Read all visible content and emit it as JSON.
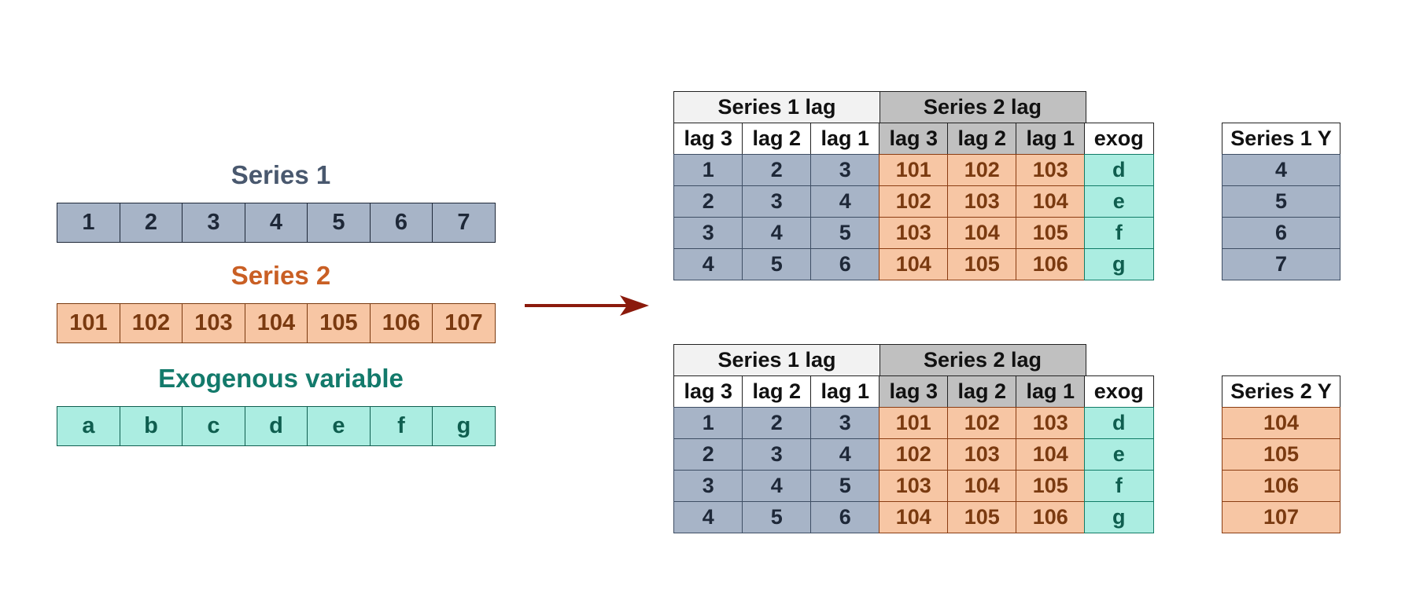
{
  "inputs": {
    "series1": {
      "title": "Series 1",
      "values": [
        "1",
        "2",
        "3",
        "4",
        "5",
        "6",
        "7"
      ]
    },
    "series2": {
      "title": "Series 2",
      "values": [
        "101",
        "102",
        "103",
        "104",
        "105",
        "106",
        "107"
      ]
    },
    "exog": {
      "title": "Exogenous variable",
      "values": [
        "a",
        "b",
        "c",
        "d",
        "e",
        "f",
        "g"
      ]
    }
  },
  "tables": [
    {
      "group_headers": [
        "Series 1 lag",
        "Series 2 lag"
      ],
      "col_headers": [
        "lag 3",
        "lag 2",
        "lag 1",
        "lag 3",
        "lag 2",
        "lag 1",
        "exog"
      ],
      "rows": [
        [
          "1",
          "2",
          "3",
          "101",
          "102",
          "103",
          "d"
        ],
        [
          "2",
          "3",
          "4",
          "102",
          "103",
          "104",
          "e"
        ],
        [
          "3",
          "4",
          "5",
          "103",
          "104",
          "105",
          "f"
        ],
        [
          "4",
          "5",
          "6",
          "104",
          "105",
          "106",
          "g"
        ]
      ],
      "target": {
        "header": "Series 1 Y",
        "values": [
          "4",
          "5",
          "6",
          "7"
        ],
        "color": "series1"
      }
    },
    {
      "group_headers": [
        "Series 1 lag",
        "Series 2 lag"
      ],
      "col_headers": [
        "lag 3",
        "lag 2",
        "lag 1",
        "lag 3",
        "lag 2",
        "lag 1",
        "exog"
      ],
      "rows": [
        [
          "1",
          "2",
          "3",
          "101",
          "102",
          "103",
          "d"
        ],
        [
          "2",
          "3",
          "4",
          "102",
          "103",
          "104",
          "e"
        ],
        [
          "3",
          "4",
          "5",
          "103",
          "104",
          "105",
          "f"
        ],
        [
          "4",
          "5",
          "6",
          "104",
          "105",
          "106",
          "g"
        ]
      ],
      "target": {
        "header": "Series 2 Y",
        "values": [
          "104",
          "105",
          "106",
          "107"
        ],
        "color": "series2"
      }
    }
  ],
  "colors": {
    "series1_fill": "#a7b4c7",
    "series2_fill": "#f7c6a4",
    "exog_fill": "#abede1",
    "arrow": "#8b1a0c"
  }
}
